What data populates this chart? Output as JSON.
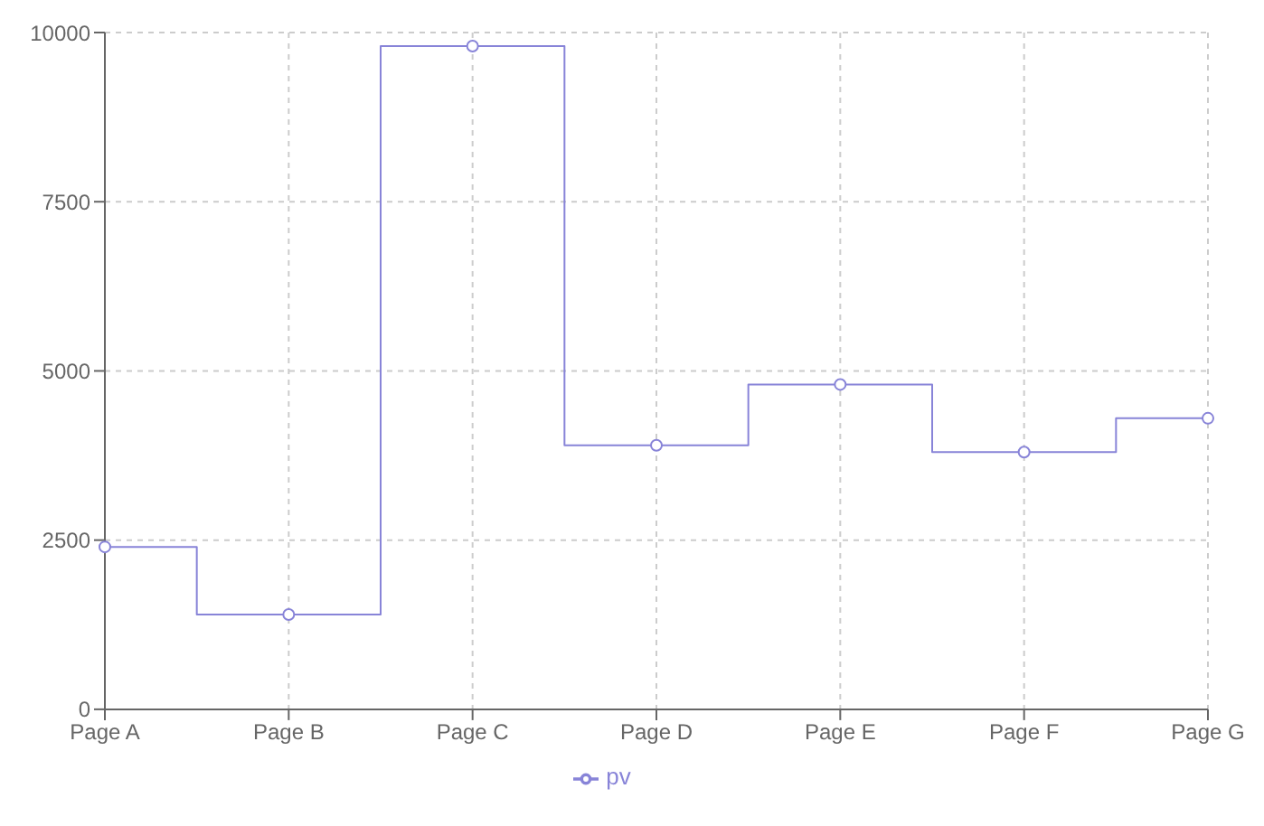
{
  "chart_data": {
    "type": "step",
    "categories": [
      "Page A",
      "Page B",
      "Page C",
      "Page D",
      "Page E",
      "Page F",
      "Page G"
    ],
    "series": [
      {
        "name": "pv",
        "color": "#8884d8",
        "values": [
          2400,
          1400,
          9800,
          3900,
          4800,
          3800,
          4300
        ]
      }
    ],
    "ylim": [
      0,
      10000
    ],
    "yticks": [
      0,
      2500,
      5000,
      7500,
      10000
    ],
    "grid": true,
    "legend": "bottom",
    "marker": "circle",
    "line_style": "solid"
  }
}
